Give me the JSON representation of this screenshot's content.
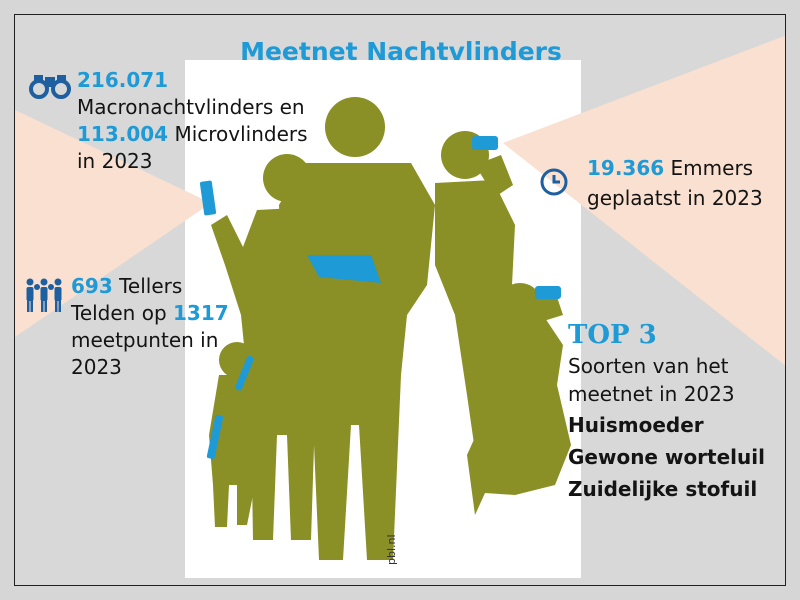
{
  "title": "Meetnet Nachtvlinders",
  "moths": {
    "macro_count": "216.071",
    "macro_label": "Macronachtvlinders en",
    "micro_count": "113.004",
    "micro_label": "Microvlinders",
    "year_text": "in 2023"
  },
  "buckets": {
    "count": "19.366",
    "label": "Emmers",
    "line2": "geplaatst in 2023"
  },
  "counters": {
    "count": "693",
    "label": "Tellers",
    "line2_prefix": "Telden op",
    "points": "1317",
    "line3": "meetpunten in",
    "line4": "2023"
  },
  "top3": {
    "heading": "TOP 3",
    "subtitle_line1": "Soorten van het",
    "subtitle_line2": "meetnet in 2023",
    "species": [
      "Huismoeder",
      "Gewone worteluil",
      "Zuidelijke stofuil"
    ]
  },
  "credit": "pbl.nl",
  "icons": [
    "binoculars-icon",
    "clock-icon",
    "people-icon"
  ],
  "colors": {
    "accent_blue": "#1e9ad6",
    "silhouette_olive": "#8a8f26",
    "beam_peach": "#f9e0d0",
    "panel_white": "#ffffff",
    "background_gray": "#d8d8d8"
  }
}
